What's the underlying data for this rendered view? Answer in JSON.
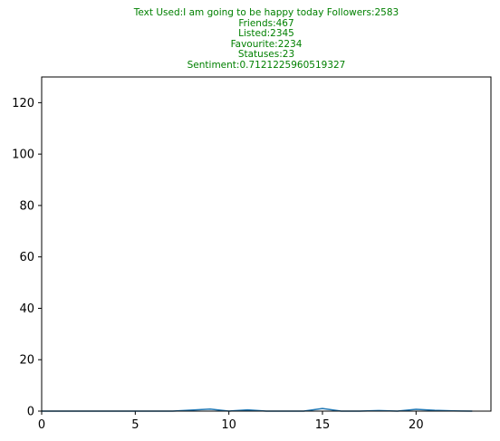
{
  "chart_data": {
    "type": "line",
    "title_lines": [
      "Text Used:I am going to be happy today Followers:2583",
      "Friends:467",
      "Listed:2345",
      "Favourite:2234",
      "Statuses:23",
      "Sentiment:0.7121225960519327"
    ],
    "xlabel": "",
    "ylabel": "",
    "xlim": [
      0,
      24
    ],
    "ylim": [
      0,
      130
    ],
    "xticks": [
      0,
      5,
      10,
      15,
      20
    ],
    "yticks": [
      0,
      20,
      40,
      60,
      80,
      100,
      120
    ],
    "grid": false,
    "series": [
      {
        "color": "#1f77b4",
        "x": [
          0,
          1,
          2,
          3,
          4,
          5,
          6,
          7,
          8,
          9,
          10,
          11,
          12,
          13,
          14,
          15,
          16,
          17,
          18,
          19,
          20,
          21,
          22,
          23
        ],
        "y": [
          0,
          0,
          0,
          0,
          0,
          0,
          0,
          0,
          0.4,
          0.8,
          0,
          0.5,
          0,
          0,
          0,
          1,
          0,
          0,
          0.2,
          0,
          0.7,
          0.3,
          0.1,
          0
        ]
      }
    ]
  }
}
